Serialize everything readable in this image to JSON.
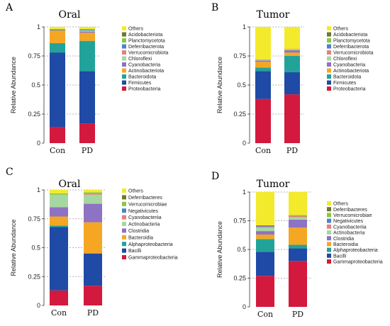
{
  "chart_data": [
    {
      "type": "bar",
      "stacked": true,
      "panel": "A",
      "title": "Oral",
      "ylabel": "Relative Abundance",
      "ylim": [
        0,
        1
      ],
      "yticks": [
        "0",
        "0.25",
        "0.5",
        "0.75",
        "1"
      ],
      "categories": [
        "Con",
        "PD"
      ],
      "grid": "dashed horizontal",
      "legend_position": "right",
      "series": [
        {
          "name": "Proteobacteria",
          "color": "#d3193d",
          "values": [
            0.14,
            0.17
          ]
        },
        {
          "name": "Firmicutes",
          "color": "#1f4aa5",
          "values": [
            0.64,
            0.45
          ]
        },
        {
          "name": "Bacteroidota",
          "color": "#21a39a",
          "values": [
            0.08,
            0.26
          ]
        },
        {
          "name": "Actinobacteriota",
          "color": "#f5a623",
          "values": [
            0.11,
            0.07
          ]
        },
        {
          "name": "Cyanobacteria",
          "color": "#8e72c4",
          "values": [
            0.0,
            0.01
          ]
        },
        {
          "name": "Chloroflexi",
          "color": "#a7d7a0",
          "values": [
            0.0,
            0.01
          ]
        },
        {
          "name": "Verrucomicrobiota",
          "color": "#e77f7f",
          "values": [
            0.0,
            0.0
          ]
        },
        {
          "name": "Deferribacterota",
          "color": "#4a86c7",
          "values": [
            0.01,
            0.01
          ]
        },
        {
          "name": "Planctomycetota",
          "color": "#8dc63f",
          "values": [
            0.0,
            0.0
          ]
        },
        {
          "name": "Acidobacteriota",
          "color": "#6b7a2e",
          "values": [
            0.0,
            0.0
          ]
        },
        {
          "name": "Others",
          "color": "#f3ea2c",
          "values": [
            0.02,
            0.02
          ]
        }
      ]
    },
    {
      "type": "bar",
      "stacked": true,
      "panel": "B",
      "title": "Tumor",
      "ylabel": "Relative Abundance",
      "ylim": [
        0,
        1
      ],
      "yticks": [
        "0",
        "0.25",
        "0.5",
        "0.75",
        "1"
      ],
      "categories": [
        "Con",
        "PD"
      ],
      "grid": "dashed horizontal",
      "legend_position": "right",
      "series": [
        {
          "name": "Proteobacteria",
          "color": "#d3193d",
          "values": [
            0.38,
            0.42
          ]
        },
        {
          "name": "Firmicutes",
          "color": "#1f4aa5",
          "values": [
            0.24,
            0.19
          ]
        },
        {
          "name": "Bacteroidota",
          "color": "#21a39a",
          "values": [
            0.03,
            0.14
          ]
        },
        {
          "name": "Actinobacteriota",
          "color": "#f5a623",
          "values": [
            0.05,
            0.03
          ]
        },
        {
          "name": "Cyanobacteria",
          "color": "#8e72c4",
          "values": [
            0.01,
            0.02
          ]
        },
        {
          "name": "Chloroflexi",
          "color": "#a7d7a0",
          "values": [
            0.005,
            0.005
          ]
        },
        {
          "name": "Verrucomicrobiota",
          "color": "#e77f7f",
          "values": [
            0.005,
            0.005
          ]
        },
        {
          "name": "Deferribacterota",
          "color": "#4a86c7",
          "values": [
            0.0,
            0.0
          ]
        },
        {
          "name": "Planctomycetota",
          "color": "#8dc63f",
          "values": [
            0.0,
            0.0
          ]
        },
        {
          "name": "Acidobacteriota",
          "color": "#6b7a2e",
          "values": [
            0.0,
            0.0
          ]
        },
        {
          "name": "Others",
          "color": "#f3ea2c",
          "values": [
            0.28,
            0.19
          ]
        }
      ]
    },
    {
      "type": "bar",
      "stacked": true,
      "panel": "C",
      "title": "Oral",
      "ylabel": "Relative Abundance",
      "ylim": [
        0,
        1
      ],
      "yticks": [
        "0",
        "0.25",
        "0.5",
        "0.75",
        "1"
      ],
      "categories": [
        "Con",
        "PD"
      ],
      "grid": "dashed horizontal",
      "legend_position": "right",
      "series": [
        {
          "name": "Gammaproteobacteria",
          "color": "#d3193d",
          "values": [
            0.13,
            0.17
          ]
        },
        {
          "name": "Bacilli",
          "color": "#1f4aa5",
          "values": [
            0.55,
            0.28
          ]
        },
        {
          "name": "Alphaproteobacteria",
          "color": "#21a39a",
          "values": [
            0.01,
            0.0
          ]
        },
        {
          "name": "Bacteroidia",
          "color": "#f5a623",
          "values": [
            0.08,
            0.27
          ]
        },
        {
          "name": "Clostridia",
          "color": "#8e72c4",
          "values": [
            0.08,
            0.16
          ]
        },
        {
          "name": "Actinobacteria",
          "color": "#a7d7a0",
          "values": [
            0.11,
            0.08
          ]
        },
        {
          "name": "Cyanobacteriia",
          "color": "#e77f7f",
          "values": [
            0.0,
            0.01
          ]
        },
        {
          "name": "Negativicutes",
          "color": "#4a86c7",
          "values": [
            0.0,
            0.0
          ]
        },
        {
          "name": "Verrucomicrobiae",
          "color": "#8dc63f",
          "values": [
            0.01,
            0.01
          ]
        },
        {
          "name": "Deferribacteres",
          "color": "#6b7a2e",
          "values": [
            0.0,
            0.0
          ]
        },
        {
          "name": "Others",
          "color": "#f3ea2c",
          "values": [
            0.03,
            0.02
          ]
        }
      ]
    },
    {
      "type": "bar",
      "stacked": true,
      "panel": "D",
      "title": "Tumor",
      "ylabel": "Relative Abundance",
      "ylim": [
        0,
        1
      ],
      "yticks": [
        "0",
        "0.25",
        "0.5",
        "0.75",
        "1"
      ],
      "categories": [
        "Con",
        "PD"
      ],
      "grid": "dashed horizontal",
      "legend_position": "right",
      "series": [
        {
          "name": "Gammaproteobacteria",
          "color": "#d3193d",
          "values": [
            0.27,
            0.4
          ]
        },
        {
          "name": "Bacilli",
          "color": "#1f4aa5",
          "values": [
            0.21,
            0.11
          ]
        },
        {
          "name": "Alphaproteobacteria",
          "color": "#21a39a",
          "values": [
            0.11,
            0.03
          ]
        },
        {
          "name": "Bacteroidia",
          "color": "#f5a623",
          "values": [
            0.04,
            0.15
          ]
        },
        {
          "name": "Clostridia",
          "color": "#8e72c4",
          "values": [
            0.03,
            0.07
          ]
        },
        {
          "name": "Actinobacteria",
          "color": "#a7d7a0",
          "values": [
            0.03,
            0.02
          ]
        },
        {
          "name": "Cyanobacteriia",
          "color": "#e77f7f",
          "values": [
            0.01,
            0.01
          ]
        },
        {
          "name": "Negativicutes",
          "color": "#4a86c7",
          "values": [
            0.01,
            0.0
          ]
        },
        {
          "name": "Verrucomicrobiae",
          "color": "#8dc63f",
          "values": [
            0.0,
            0.01
          ]
        },
        {
          "name": "Deferribacteres",
          "color": "#6b7a2e",
          "values": [
            0.0,
            0.0
          ]
        },
        {
          "name": "Others",
          "color": "#f3ea2c",
          "values": [
            0.29,
            0.2
          ]
        }
      ]
    }
  ]
}
